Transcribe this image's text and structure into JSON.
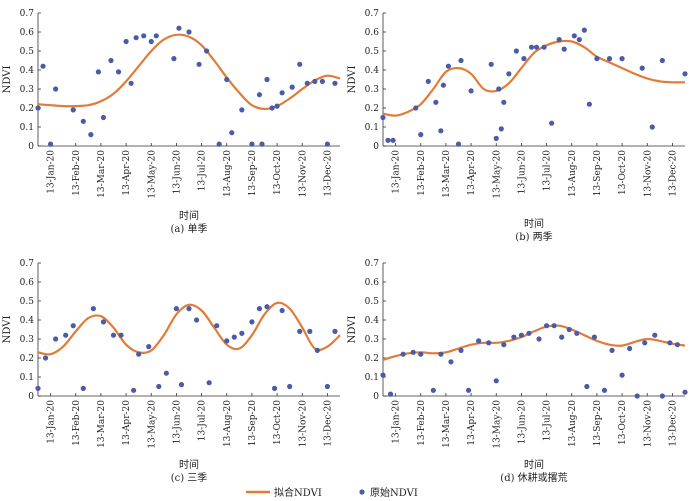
{
  "legend": {
    "fit_label": "拟合NDVI",
    "raw_label": "原始NDVI"
  },
  "colors": {
    "fit_line": "#E07B39",
    "raw_points": "#4A5BA8"
  },
  "months": [
    "13-Jan-20",
    "13-Feb-20",
    "13-Mar-20",
    "13-Apr-20",
    "13-May-20",
    "13-Jun-20",
    "13-Jul-20",
    "13-Aug-20",
    "13-Sep-20",
    "13-Oct-20",
    "13-Nov-20",
    "13-Dec-20"
  ],
  "chart_data": [
    {
      "type": "line",
      "ylabel": "NDVI",
      "xlabel": "时间",
      "caption": "(a) 单季",
      "ylim": [
        0,
        0.7
      ],
      "yticks": [
        "0",
        "0.1",
        "0.2",
        "0.3",
        "0.4",
        "0.5",
        "0.6",
        "0.7"
      ],
      "xlim": [
        -0.5,
        11.5
      ],
      "grid": false,
      "fit": {
        "x": [
          -0.5,
          0,
          0.5,
          1,
          1.5,
          2,
          2.5,
          3,
          3.5,
          4,
          4.5,
          5,
          5.5,
          6,
          6.5,
          7,
          7.5,
          8,
          8.5,
          9,
          9.5,
          10,
          10.5,
          11,
          11.5
        ],
        "y": [
          0.22,
          0.215,
          0.21,
          0.21,
          0.215,
          0.235,
          0.275,
          0.34,
          0.42,
          0.5,
          0.56,
          0.585,
          0.575,
          0.53,
          0.45,
          0.36,
          0.28,
          0.215,
          0.195,
          0.21,
          0.25,
          0.3,
          0.345,
          0.37,
          0.355
        ]
      },
      "raw": {
        "x": [
          -0.5,
          -0.3,
          0,
          0.2,
          0.9,
          1.3,
          1.6,
          1.9,
          2.1,
          2.4,
          2.7,
          3.0,
          3.2,
          3.4,
          3.7,
          4.0,
          4.2,
          4.9,
          5.1,
          5.5,
          5.9,
          6.2,
          6.7,
          7.0,
          7.2,
          7.6,
          8.0,
          8.3,
          8.4,
          8.6,
          8.8,
          9.0,
          9.2,
          9.6,
          9.9,
          10.2,
          10.5,
          10.8,
          11.0,
          11.3
        ],
        "y": [
          0.2,
          0.42,
          0.01,
          0.3,
          0.19,
          0.13,
          0.06,
          0.39,
          0.15,
          0.45,
          0.39,
          0.55,
          0.33,
          0.57,
          0.58,
          0.55,
          0.58,
          0.46,
          0.62,
          0.6,
          0.43,
          0.5,
          0.01,
          0.35,
          0.07,
          0.19,
          0.01,
          0.27,
          0.01,
          0.35,
          0.2,
          0.21,
          0.28,
          0.31,
          0.43,
          0.33,
          0.34,
          0.34,
          0.01,
          0.33
        ]
      }
    },
    {
      "type": "line",
      "ylabel": "NDVI",
      "xlabel": "时间",
      "caption": "(b) 两季",
      "ylim": [
        0,
        0.7
      ],
      "yticks": [
        "0",
        "0.1",
        "0.2",
        "0.3",
        "0.4",
        "0.5",
        "0.6",
        "0.7"
      ],
      "xlim": [
        -0.5,
        11.5
      ],
      "grid": false,
      "fit": {
        "x": [
          -0.5,
          0,
          0.5,
          1,
          1.5,
          2,
          2.5,
          3,
          3.5,
          4,
          4.5,
          5,
          5.5,
          6,
          6.5,
          7,
          7.5,
          8,
          8.5,
          9,
          9.5,
          10,
          10.5,
          11,
          11.5
        ],
        "y": [
          0.17,
          0.16,
          0.18,
          0.22,
          0.3,
          0.39,
          0.41,
          0.38,
          0.3,
          0.29,
          0.33,
          0.41,
          0.49,
          0.53,
          0.55,
          0.55,
          0.52,
          0.47,
          0.44,
          0.41,
          0.38,
          0.355,
          0.34,
          0.335,
          0.335
        ]
      },
      "raw": {
        "x": [
          -0.5,
          -0.3,
          -0.1,
          0.8,
          1.0,
          1.3,
          1.6,
          1.8,
          1.9,
          2.1,
          2.5,
          2.6,
          3.0,
          3.8,
          4.0,
          4.1,
          4.2,
          4.3,
          4.5,
          4.8,
          5.1,
          5.4,
          5.6,
          5.9,
          6.2,
          6.5,
          6.7,
          7.1,
          7.3,
          7.5,
          7.7,
          8.0,
          8.5,
          9.0,
          9.8,
          10.2,
          10.6,
          11.5
        ],
        "y": [
          0.15,
          0.03,
          0.03,
          0.2,
          0.06,
          0.34,
          0.23,
          0.08,
          0.32,
          0.42,
          0.01,
          0.45,
          0.29,
          0.43,
          0.04,
          0.3,
          0.09,
          0.23,
          0.38,
          0.5,
          0.46,
          0.52,
          0.52,
          0.52,
          0.12,
          0.56,
          0.51,
          0.58,
          0.56,
          0.61,
          0.22,
          0.46,
          0.46,
          0.46,
          0.41,
          0.1,
          0.45,
          0.38
        ]
      }
    },
    {
      "type": "line",
      "ylabel": "NDVI",
      "xlabel": "时间",
      "caption": "(c) 三季",
      "ylim": [
        0,
        0.7
      ],
      "yticks": [
        "0",
        "0.1",
        "0.2",
        "0.3",
        "0.4",
        "0.5",
        "0.6",
        "0.7"
      ],
      "xlim": [
        -0.5,
        11.5
      ],
      "grid": false,
      "fit": {
        "x": [
          -0.5,
          0,
          0.5,
          1,
          1.5,
          2,
          2.5,
          3,
          3.5,
          4,
          4.5,
          5,
          5.5,
          6,
          6.5,
          7,
          7.5,
          8,
          8.5,
          9,
          9.5,
          10,
          10.5,
          11,
          11.5
        ],
        "y": [
          0.23,
          0.22,
          0.26,
          0.34,
          0.41,
          0.42,
          0.36,
          0.27,
          0.23,
          0.24,
          0.32,
          0.43,
          0.48,
          0.45,
          0.36,
          0.27,
          0.25,
          0.32,
          0.43,
          0.49,
          0.46,
          0.36,
          0.25,
          0.26,
          0.32
        ]
      },
      "raw": {
        "x": [
          -0.5,
          -0.2,
          0.2,
          0.6,
          0.9,
          1.3,
          1.7,
          2.1,
          2.5,
          2.8,
          3.3,
          3.5,
          3.9,
          4.3,
          4.6,
          5.0,
          5.2,
          5.5,
          5.8,
          6.3,
          6.6,
          7.0,
          7.3,
          7.6,
          8.0,
          8.3,
          8.6,
          8.9,
          9.2,
          9.5,
          9.9,
          10.3,
          10.6,
          11.0,
          11.3
        ],
        "y": [
          0.04,
          0.2,
          0.3,
          0.32,
          0.37,
          0.04,
          0.46,
          0.39,
          0.32,
          0.32,
          0.03,
          0.22,
          0.26,
          0.05,
          0.12,
          0.46,
          0.06,
          0.46,
          0.4,
          0.07,
          0.37,
          0.29,
          0.31,
          0.33,
          0.39,
          0.46,
          0.47,
          0.04,
          0.45,
          0.05,
          0.34,
          0.34,
          0.24,
          0.05,
          0.34
        ]
      }
    },
    {
      "type": "line",
      "ylabel": "NDVI",
      "xlabel": "时间",
      "caption": "(d) 休耕或撂荒",
      "ylim": [
        0,
        0.7
      ],
      "yticks": [
        "0",
        "0.1",
        "0.2",
        "0.3",
        "0.4",
        "0.5",
        "0.6",
        "0.7"
      ],
      "xlim": [
        -0.5,
        11.5
      ],
      "grid": false,
      "fit": {
        "x": [
          -0.5,
          0,
          0.5,
          1,
          1.5,
          2,
          2.5,
          3,
          3.5,
          4,
          4.5,
          5,
          5.5,
          6,
          6.5,
          7,
          7.5,
          8,
          8.5,
          9,
          9.5,
          10,
          10.5,
          11,
          11.5
        ],
        "y": [
          0.19,
          0.21,
          0.225,
          0.23,
          0.225,
          0.23,
          0.25,
          0.27,
          0.28,
          0.28,
          0.29,
          0.31,
          0.34,
          0.365,
          0.37,
          0.35,
          0.32,
          0.29,
          0.27,
          0.265,
          0.285,
          0.3,
          0.29,
          0.275,
          0.265
        ]
      },
      "raw": {
        "x": [
          -0.5,
          -0.2,
          0.3,
          0.7,
          1.0,
          1.5,
          1.8,
          2.2,
          2.6,
          2.9,
          3.3,
          3.7,
          4.0,
          4.3,
          4.7,
          5.0,
          5.3,
          5.7,
          6.0,
          6.3,
          6.6,
          6.9,
          7.2,
          7.6,
          7.9,
          8.3,
          8.6,
          9.0,
          9.3,
          9.6,
          9.9,
          10.3,
          10.6,
          10.9,
          11.2,
          11.5
        ],
        "y": [
          0.11,
          0.01,
          0.22,
          0.23,
          0.22,
          0.03,
          0.22,
          0.18,
          0.24,
          0.03,
          0.29,
          0.28,
          0.08,
          0.27,
          0.31,
          0.32,
          0.33,
          0.3,
          0.37,
          0.37,
          0.31,
          0.35,
          0.33,
          0.05,
          0.31,
          0.03,
          0.24,
          0.11,
          0.25,
          0.0,
          0.28,
          0.32,
          0.0,
          0.28,
          0.27,
          0.02
        ]
      }
    }
  ]
}
